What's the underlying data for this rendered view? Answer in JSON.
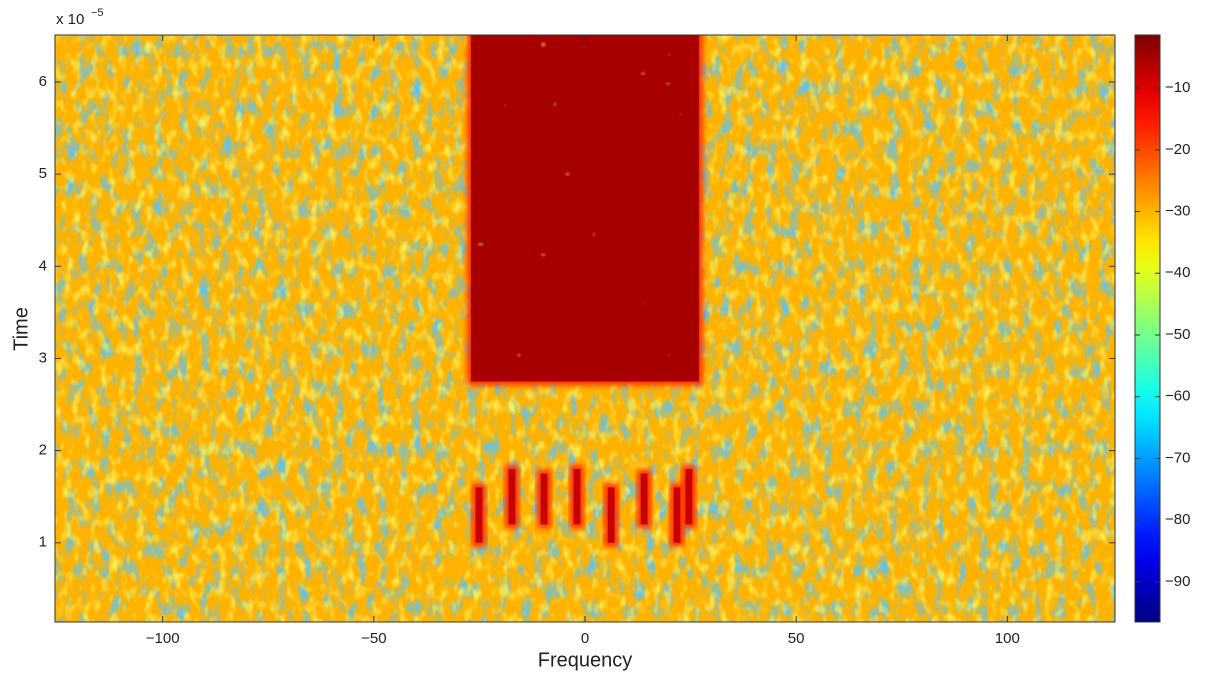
{
  "chart_data": {
    "type": "heatmap",
    "xlabel": "Frequency",
    "ylabel": "Time",
    "y_multiplier": {
      "base": "x 10",
      "exponent": "−5"
    },
    "xlim": [
      -125.5,
      125.5
    ],
    "xticks": [
      {
        "value": -100,
        "label": "−100"
      },
      {
        "value": -50,
        "label": "−50"
      },
      0,
      50,
      100
    ],
    "ylim": [
      0.14,
      6.51
    ],
    "yticks": [
      1,
      2,
      3,
      4,
      5,
      6
    ],
    "clim": [
      -96.5,
      -1.4
    ],
    "cticks": [
      {
        "value": -10,
        "label": "−10"
      },
      {
        "value": -20,
        "label": "−20"
      },
      {
        "value": -30,
        "label": "−30"
      },
      {
        "value": -40,
        "label": "−40"
      },
      {
        "value": -50,
        "label": "−50"
      },
      {
        "value": -60,
        "label": "−60"
      },
      {
        "value": -70,
        "label": "−70"
      },
      {
        "value": -80,
        "label": "−80"
      },
      {
        "value": -90,
        "label": "−90"
      }
    ],
    "background_value": -30,
    "regions": [
      {
        "x": [
          -27,
          27
        ],
        "y": [
          2.75,
          6.51
        ],
        "value": -5
      },
      {
        "x": [
          -25.9,
          -24.3
        ],
        "y": [
          1.0,
          1.6
        ],
        "value": -8
      },
      {
        "x": [
          -18.1,
          -16.5
        ],
        "y": [
          1.2,
          1.8
        ],
        "value": -8
      },
      {
        "x": [
          -10.5,
          -8.9
        ],
        "y": [
          1.2,
          1.75
        ],
        "value": -8
      },
      {
        "x": [
          -2.7,
          -1.1
        ],
        "y": [
          1.2,
          1.8
        ],
        "value": -8
      },
      {
        "x": [
          5.4,
          7.0
        ],
        "y": [
          1.0,
          1.6
        ],
        "value": -8
      },
      {
        "x": [
          13.2,
          14.8
        ],
        "y": [
          1.2,
          1.75
        ],
        "value": -8
      },
      {
        "x": [
          21.0,
          22.6
        ],
        "y": [
          1.0,
          1.6
        ],
        "value": -8
      },
      {
        "x": [
          23.8,
          25.4
        ],
        "y": [
          1.2,
          1.8
        ],
        "value": -8
      }
    ]
  }
}
